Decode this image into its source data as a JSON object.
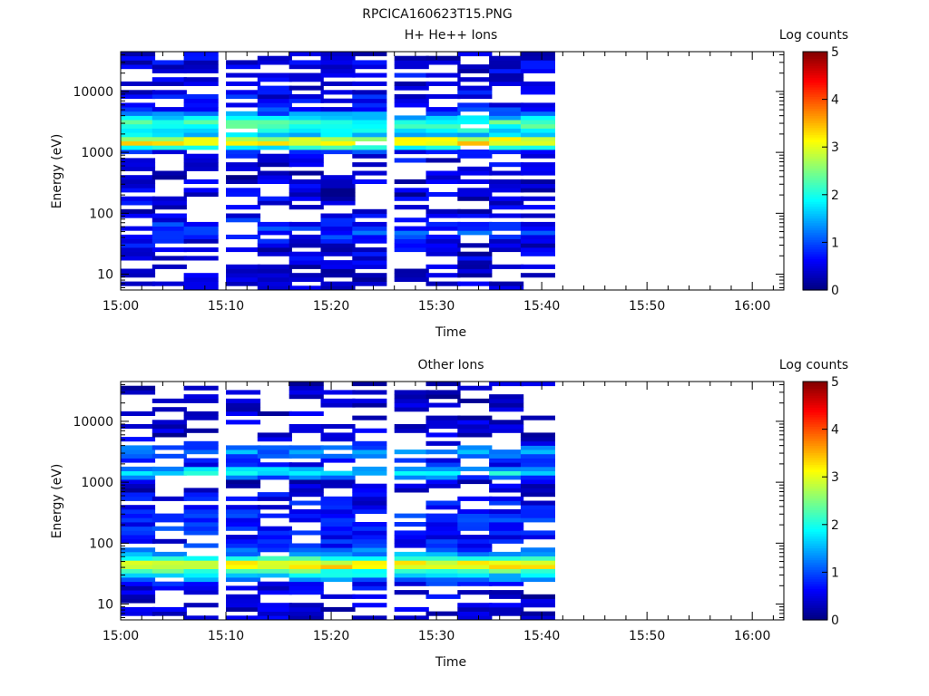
{
  "figure": {
    "title": "RPCICA160623T15.PNG"
  },
  "chart_data": [
    {
      "type": "heatmap",
      "title": "H+ He++ Ions",
      "xlabel": "Time",
      "ylabel": "Energy (eV)",
      "y_scale": "log",
      "ylim": [
        5.5,
        45000
      ],
      "xlim": [
        "15:00",
        "16:03"
      ],
      "x_tick_labels": [
        "15:00",
        "15:10",
        "15:20",
        "15:30",
        "15:40",
        "15:50",
        "16:00"
      ],
      "y_tick_labels": [
        "10",
        "100",
        "1000",
        "10000"
      ],
      "time_bins": [
        "15:00",
        "15:03",
        "15:06",
        "15:10",
        "15:13",
        "15:16",
        "15:19",
        "15:22",
        "15:26",
        "15:29",
        "15:32",
        "15:35",
        "15:38"
      ],
      "energy_profile_ev": [
        8,
        12,
        20,
        35,
        45,
        60,
        100,
        200,
        500,
        1000,
        1500,
        2000,
        3000,
        5000,
        10000,
        20000,
        40000
      ],
      "energy_profile_log_counts": [
        0.3,
        0.3,
        0.4,
        0.5,
        0.9,
        0.8,
        0.5,
        0.4,
        0.4,
        0.6,
        3.6,
        1.5,
        2.3,
        0.8,
        0.5,
        0.5,
        0.4
      ],
      "colorbar": {
        "label": "Log counts",
        "range": [
          0,
          5
        ],
        "tick_labels": [
          "0",
          "1",
          "2",
          "3",
          "4",
          "5"
        ]
      },
      "grid": false
    },
    {
      "type": "heatmap",
      "title": "Other Ions",
      "xlabel": "Time",
      "ylabel": "Energy (eV)",
      "y_scale": "log",
      "ylim": [
        5.5,
        45000
      ],
      "xlim": [
        "15:00",
        "16:03"
      ],
      "x_tick_labels": [
        "15:00",
        "15:10",
        "15:20",
        "15:30",
        "15:40",
        "15:50",
        "16:00"
      ],
      "y_tick_labels": [
        "10",
        "100",
        "1000",
        "10000"
      ],
      "time_bins": [
        "15:00",
        "15:03",
        "15:06",
        "15:10",
        "15:13",
        "15:16",
        "15:19",
        "15:22",
        "15:26",
        "15:29",
        "15:32",
        "15:35",
        "15:38"
      ],
      "energy_profile_ev": [
        8,
        12,
        20,
        35,
        45,
        60,
        100,
        200,
        500,
        1000,
        1500,
        2000,
        3000,
        5000,
        10000,
        20000,
        40000
      ],
      "energy_profile_log_counts": [
        0.4,
        0.4,
        0.5,
        2.2,
        3.6,
        1.6,
        0.6,
        0.8,
        0.6,
        0.3,
        2.0,
        0.5,
        1.4,
        0.4,
        0.3,
        0.2,
        0.2
      ],
      "colorbar": {
        "label": "Log counts",
        "range": [
          0,
          5
        ],
        "tick_labels": [
          "0",
          "1",
          "2",
          "3",
          "4",
          "5"
        ]
      },
      "grid": false
    }
  ]
}
